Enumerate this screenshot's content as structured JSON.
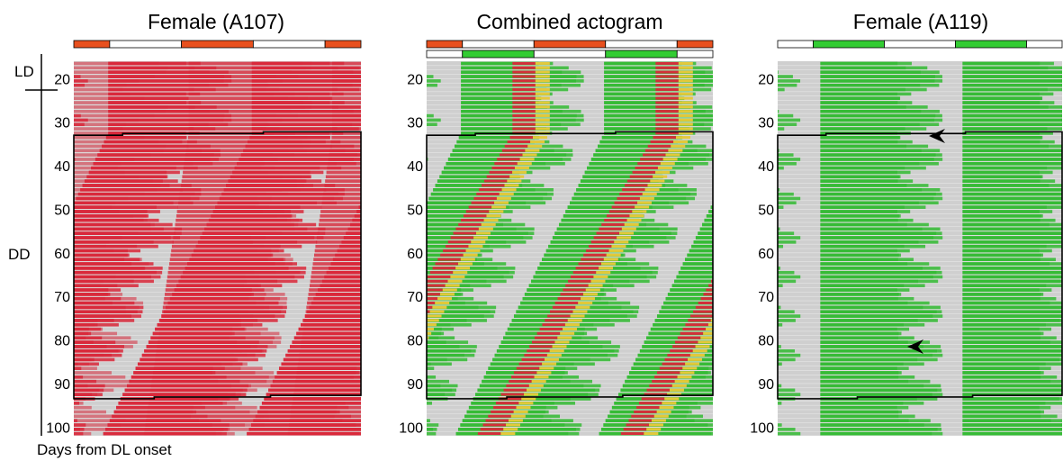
{
  "figure": {
    "panels": [
      {
        "title": "Female (A107)",
        "activity_color": "#d9283a",
        "light_bars": [
          {
            "bar": [
              "light",
              "dark",
              "light",
              "dark",
              "light"
            ],
            "colors": [
              "#e8501e",
              "#ffffff",
              "#e8501e",
              "#ffffff",
              "#e8501e"
            ]
          }
        ]
      },
      {
        "title": "Combined actogram",
        "activity_color": "#33bb33",
        "light_bars": [
          {
            "bar": [
              "light",
              "dark",
              "light",
              "dark",
              "light"
            ],
            "colors": [
              "#e8501e",
              "#ffffff",
              "#e8501e",
              "#ffffff",
              "#e8501e"
            ]
          },
          {
            "bar": [
              "dark",
              "light",
              "dark",
              "light",
              "dark"
            ],
            "colors": [
              "#ffffff",
              "#33cc33",
              "#ffffff",
              "#33cc33",
              "#ffffff"
            ]
          }
        ]
      },
      {
        "title": "Female (A119)",
        "activity_color": "#33bb33",
        "light_bars": [
          {
            "bar": [
              "dark",
              "light",
              "dark",
              "light",
              "dark"
            ],
            "colors": [
              "#ffffff",
              "#33cc33",
              "#ffffff",
              "#33cc33",
              "#ffffff"
            ]
          }
        ]
      }
    ],
    "y_tick_labels": [
      "20",
      "30",
      "40",
      "50",
      "60",
      "70",
      "80",
      "90",
      "100"
    ],
    "condition_labels": {
      "ld": "LD",
      "dd": "DD"
    },
    "x_caption": "Days from DL onset",
    "arrowhead_days": [
      34,
      83
    ],
    "day_range": [
      16,
      102
    ]
  }
}
